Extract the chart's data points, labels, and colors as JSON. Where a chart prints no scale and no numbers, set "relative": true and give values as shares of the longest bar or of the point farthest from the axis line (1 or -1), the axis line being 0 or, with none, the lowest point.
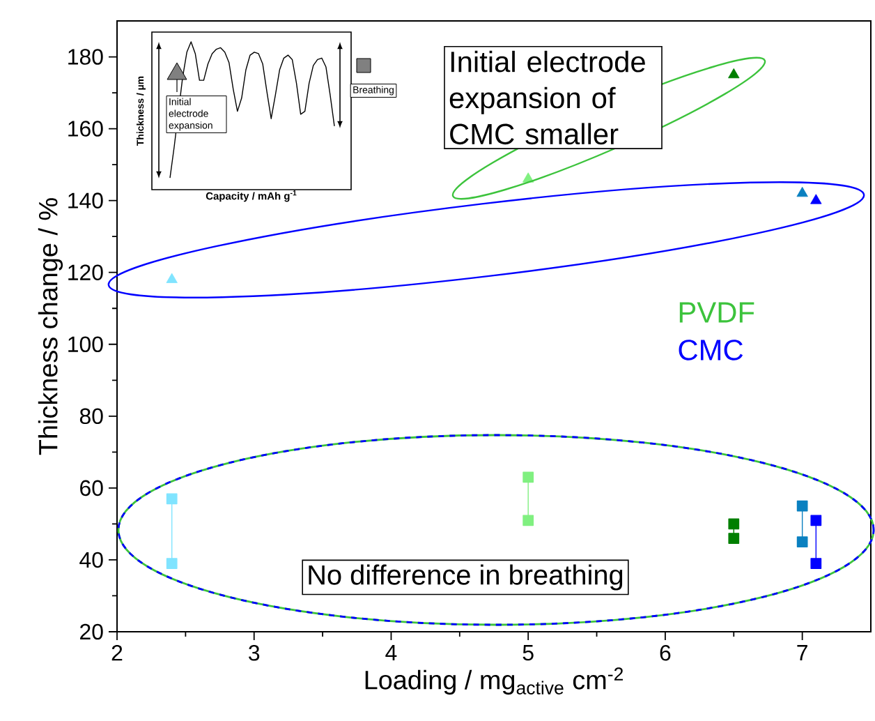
{
  "chart_data": [
    {
      "type": "scatter",
      "xlabel": "Loading / mg$_{active}$ cm$^{-2}$",
      "ylabel": "Thickness change / %",
      "xlim": [
        2,
        7.5
      ],
      "ylim": [
        20,
        190
      ],
      "xticks": [
        2,
        3,
        4,
        5,
        6,
        7
      ],
      "yticks": [
        20,
        40,
        60,
        80,
        100,
        120,
        140,
        160,
        180
      ],
      "series": [
        {
          "type": "scatter",
          "marker": "triangle",
          "x": [
            2.4,
            5.0,
            6.5,
            7.0,
            7.1
          ],
          "values": [
            118,
            146,
            175,
            142,
            140
          ],
          "colors": [
            "#80e4ff",
            "#80f080",
            "#007f00",
            "#0a80c0",
            "#0000ff"
          ]
        },
        {
          "type": "line",
          "marker": "square",
          "color": "#80e4ff",
          "x": [
            2.4,
            2.4
          ],
          "values": [
            57,
            39
          ]
        },
        {
          "type": "line",
          "marker": "square",
          "color": "#80f080",
          "x": [
            5.0,
            5.0
          ],
          "values": [
            63,
            51
          ]
        },
        {
          "type": "line",
          "marker": "square",
          "color": "#007f00",
          "x": [
            6.5,
            6.5
          ],
          "values": [
            50,
            46
          ]
        },
        {
          "type": "line",
          "marker": "square",
          "color": "#0a80c0",
          "x": [
            7.0,
            7.0
          ],
          "values": [
            55,
            45
          ]
        },
        {
          "type": "line",
          "marker": "square",
          "color": "#0000ff",
          "x": [
            7.1,
            7.1
          ],
          "values": [
            51,
            39
          ]
        }
      ],
      "annotations": [
        "Initial electrode expansion of CMC smaller",
        "No difference in breathing",
        "PVDF",
        "CMC"
      ]
    },
    {
      "type": "line",
      "relative": true,
      "xlabel": "Capacity / mAh g$^{-1}$",
      "ylabel": "Thickness / µm",
      "color": "#000000",
      "categories": [
        null,
        null,
        null,
        null,
        null,
        null,
        null,
        null,
        null,
        null,
        null,
        null,
        null,
        null,
        null,
        null,
        null,
        null,
        null,
        null,
        null,
        null,
        null,
        null,
        null,
        null,
        null,
        null,
        null,
        null,
        null,
        null,
        null,
        null,
        null,
        null,
        null,
        null,
        null,
        null
      ],
      "values": [
        0.08,
        0.29,
        null,
        0.76,
        0.93,
        1.0,
        0.92,
        0.74,
        0.74,
        0.85,
        0.92,
        0.95,
        0.96,
        0.93,
        0.86,
        0.68,
        0.53,
        0.62,
        0.81,
        0.91,
        0.93,
        0.92,
        0.85,
        0.66,
        0.48,
        0.64,
        0.81,
        0.89,
        0.91,
        0.88,
        0.72,
        0.51,
        0.53,
        0.72,
        0.84,
        0.88,
        0.89,
        0.83,
        0.64,
        0.43
      ],
      "annotations": [
        "Initial electrode expansion",
        "Breathing"
      ]
    }
  ]
}
